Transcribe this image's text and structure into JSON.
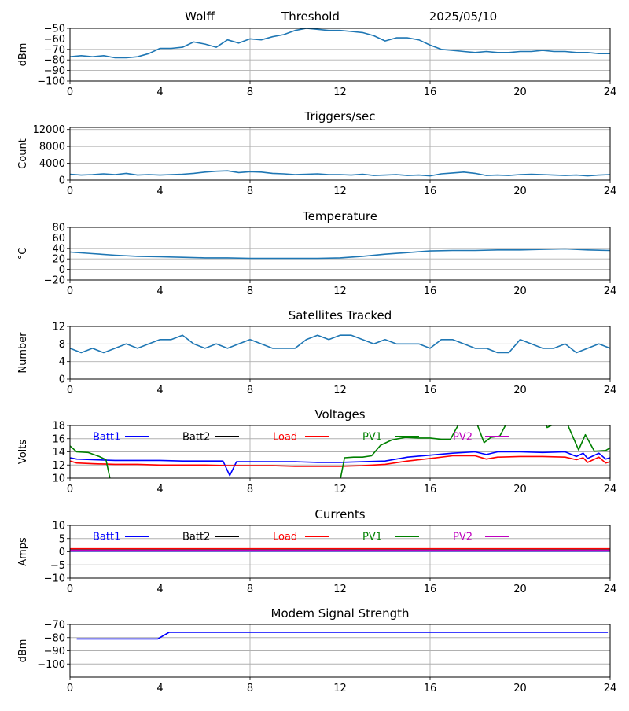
{
  "header": {
    "station": "Wolff",
    "mode": "Threshold",
    "date": "2025/05/10"
  },
  "colors": {
    "default": "#1f77b4",
    "batt1": "#0000ff",
    "batt2": "#000000",
    "load": "#ff0000",
    "pv1": "#008000",
    "pv2": "#bf00bf"
  },
  "chart_data": [
    {
      "id": "signal",
      "type": "line",
      "title": "",
      "ylabel": "dBm",
      "xlim": [
        0,
        24
      ],
      "ylim": [
        -100,
        -50
      ],
      "xticks": [
        0,
        4,
        8,
        12,
        16,
        20,
        24
      ],
      "yticks": [
        -100,
        -90,
        -80,
        -70,
        -60,
        -50
      ],
      "series": [
        {
          "color": "default",
          "x": [
            0,
            0.5,
            1,
            1.5,
            2,
            2.5,
            3,
            3.5,
            4,
            4.5,
            5,
            5.5,
            6,
            6.5,
            7,
            7.5,
            8,
            8.5,
            9,
            9.5,
            10,
            10.5,
            11,
            11.5,
            12,
            12.5,
            13,
            13.5,
            14,
            14.5,
            15,
            15.5,
            16,
            16.5,
            17,
            17.5,
            18,
            18.5,
            19,
            19.5,
            20,
            20.5,
            21,
            21.5,
            22,
            22.5,
            23,
            23.5,
            24
          ],
          "y": [
            -77,
            -76,
            -77,
            -76,
            -78,
            -78,
            -77,
            -74,
            -69,
            -69,
            -68,
            -63,
            -65,
            -68,
            -61,
            -64,
            -60,
            -61,
            -58,
            -56,
            -52,
            -50,
            -51,
            -52,
            -52,
            -53,
            -54,
            -57,
            -62,
            -59,
            -59,
            -61,
            -66,
            -70,
            -71,
            -72,
            -73,
            -72,
            -73,
            -73,
            -72,
            -72,
            -71,
            -72,
            -72,
            -73,
            -73,
            -74,
            -74
          ]
        }
      ]
    },
    {
      "id": "triggers",
      "type": "line",
      "title": "Triggers/sec",
      "ylabel": "Count",
      "xlim": [
        0,
        24
      ],
      "ylim": [
        0,
        12500
      ],
      "xticks": [
        0,
        4,
        8,
        12,
        16,
        20,
        24
      ],
      "yticks": [
        0,
        4000,
        8000,
        12000
      ],
      "series": [
        {
          "color": "default",
          "x": [
            0,
            0.5,
            1,
            1.5,
            2,
            2.5,
            3,
            3.5,
            4,
            4.5,
            5,
            5.5,
            6,
            6.5,
            7,
            7.5,
            8,
            8.5,
            9,
            9.5,
            10,
            10.5,
            11,
            11.5,
            12,
            12.5,
            13,
            13.5,
            14,
            14.5,
            15,
            15.5,
            16,
            16.5,
            17,
            17.5,
            18,
            18.5,
            19,
            19.5,
            20,
            20.5,
            21,
            21.5,
            22,
            22.5,
            23,
            23.5,
            24
          ],
          "y": [
            1400,
            1200,
            1300,
            1500,
            1300,
            1600,
            1200,
            1300,
            1200,
            1300,
            1400,
            1600,
            1900,
            2100,
            2200,
            1800,
            2000,
            1900,
            1600,
            1500,
            1300,
            1400,
            1500,
            1300,
            1300,
            1200,
            1400,
            1100,
            1200,
            1300,
            1100,
            1200,
            1000,
            1500,
            1700,
            1900,
            1600,
            1100,
            1200,
            1100,
            1300,
            1400,
            1300,
            1200,
            1100,
            1200,
            1000,
            1200,
            1300
          ]
        }
      ]
    },
    {
      "id": "temperature",
      "type": "line",
      "title": "Temperature",
      "ylabel": "°C",
      "xlim": [
        0,
        24
      ],
      "ylim": [
        -20,
        80
      ],
      "xticks": [
        0,
        4,
        8,
        12,
        16,
        20,
        24
      ],
      "yticks": [
        -20,
        0,
        20,
        40,
        60,
        80
      ],
      "series": [
        {
          "color": "default",
          "x": [
            0,
            1,
            2,
            3,
            4,
            5,
            6,
            7,
            8,
            9,
            10,
            11,
            12,
            13,
            14,
            15,
            16,
            17,
            18,
            19,
            20,
            21,
            22,
            23,
            24
          ],
          "y": [
            33,
            30,
            27,
            25,
            24,
            23,
            22,
            22,
            21,
            21,
            21,
            21,
            22,
            25,
            29,
            32,
            35,
            36,
            36,
            37,
            37,
            38,
            39,
            37,
            36
          ]
        }
      ]
    },
    {
      "id": "satellites",
      "type": "line",
      "title": "Satellites Tracked",
      "ylabel": "Number",
      "xlim": [
        0,
        24
      ],
      "ylim": [
        0,
        12
      ],
      "xticks": [
        0,
        4,
        8,
        12,
        16,
        20,
        24
      ],
      "yticks": [
        0,
        4,
        8,
        12
      ],
      "series": [
        {
          "color": "default",
          "x": [
            0,
            0.5,
            1,
            1.5,
            2,
            2.5,
            3,
            3.5,
            4,
            4.5,
            5,
            5.5,
            6,
            6.5,
            7,
            7.5,
            8,
            8.5,
            9,
            9.5,
            10,
            10.5,
            11,
            11.5,
            12,
            12.5,
            13,
            13.5,
            14,
            14.5,
            15,
            15.5,
            16,
            16.5,
            17,
            17.5,
            18,
            18.5,
            19,
            19.5,
            20,
            20.5,
            21,
            21.5,
            22,
            22.5,
            23,
            23.5,
            24
          ],
          "y": [
            7,
            6,
            7,
            6,
            7,
            8,
            7,
            8,
            9,
            9,
            10,
            8,
            7,
            8,
            7,
            8,
            9,
            8,
            7,
            7,
            7,
            9,
            10,
            9,
            10,
            10,
            9,
            8,
            9,
            8,
            8,
            8,
            7,
            9,
            9,
            8,
            7,
            7,
            6,
            6,
            9,
            8,
            7,
            7,
            8,
            6,
            7,
            8,
            7
          ]
        }
      ]
    },
    {
      "id": "voltages",
      "type": "line",
      "title": "Voltages",
      "ylabel": "Volts",
      "xlim": [
        0,
        24
      ],
      "ylim": [
        10,
        18
      ],
      "xticks": [
        0,
        4,
        8,
        12,
        16,
        20,
        24
      ],
      "yticks": [
        10,
        12,
        14,
        16,
        18
      ],
      "legend": [
        "Batt1",
        "Batt2",
        "Load",
        "PV1",
        "PV2"
      ],
      "series": [
        {
          "name": "Batt1",
          "color": "batt1",
          "x": [
            0,
            0.3,
            1,
            2,
            3,
            4,
            5,
            6,
            6.8,
            7.1,
            7.4,
            8,
            9,
            10,
            11,
            12,
            13,
            14,
            15,
            16,
            17,
            18,
            18.5,
            19,
            20,
            21,
            22,
            22.5,
            22.8,
            23,
            23.5,
            23.8,
            24
          ],
          "y": [
            13.1,
            12.9,
            12.8,
            12.7,
            12.7,
            12.7,
            12.6,
            12.6,
            12.6,
            10.4,
            12.5,
            12.5,
            12.5,
            12.5,
            12.4,
            12.4,
            12.5,
            12.6,
            13.2,
            13.5,
            13.8,
            14.0,
            13.6,
            14.0,
            14.0,
            13.9,
            14.0,
            13.3,
            13.8,
            13.0,
            13.8,
            12.9,
            13.1
          ]
        },
        {
          "name": "Load",
          "color": "load",
          "x": [
            0,
            0.3,
            1,
            2,
            3,
            4,
            5,
            6,
            7,
            8,
            9,
            10,
            11,
            12,
            13,
            14,
            15,
            16,
            17,
            18,
            18.5,
            19,
            20,
            21,
            22,
            22.5,
            22.8,
            23,
            23.5,
            23.8,
            24
          ],
          "y": [
            12.6,
            12.3,
            12.2,
            12.1,
            12.1,
            12.0,
            12.0,
            12.0,
            11.9,
            11.9,
            11.9,
            11.8,
            11.8,
            11.8,
            11.9,
            12.1,
            12.6,
            13.0,
            13.4,
            13.4,
            12.9,
            13.2,
            13.3,
            13.3,
            13.2,
            12.8,
            13.1,
            12.4,
            13.2,
            12.3,
            12.5
          ]
        },
        {
          "name": "PV1",
          "color": "pv1",
          "x": [
            0,
            0.3,
            0.8,
            1.3,
            1.6,
            1.8,
            12,
            12.2,
            12.6,
            13,
            13.4,
            13.8,
            14.3,
            14.9,
            15.5,
            16,
            16.5,
            16.9,
            17.4,
            18,
            18.4,
            18.7,
            19.1,
            19.5,
            20.2,
            21,
            21.2,
            22,
            22.6,
            22.9,
            23.3,
            23.8,
            24
          ],
          "y": [
            14.9,
            14.0,
            13.9,
            13.3,
            12.8,
            9.6,
            9.6,
            13.1,
            13.2,
            13.2,
            13.4,
            15.0,
            15.8,
            16.2,
            16.1,
            16.1,
            15.9,
            15.9,
            19.0,
            19.0,
            15.4,
            16.2,
            16.4,
            19.0,
            19.0,
            19.0,
            17.7,
            19.0,
            14.3,
            16.6,
            14.1,
            14.2,
            14.6
          ]
        }
      ]
    },
    {
      "id": "currents",
      "type": "line",
      "title": "Currents",
      "ylabel": "Amps",
      "xlim": [
        0,
        24
      ],
      "ylim": [
        -10,
        10
      ],
      "xticks": [
        0,
        4,
        8,
        12,
        16,
        20,
        24
      ],
      "yticks": [
        -10,
        -5,
        0,
        5,
        10
      ],
      "legend": [
        "Batt1",
        "Batt2",
        "Load",
        "PV1",
        "PV2"
      ],
      "series": [
        {
          "name": "Load",
          "color": "load",
          "x": [
            0,
            24
          ],
          "y": [
            1.0,
            1.0
          ]
        },
        {
          "name": "PV1",
          "color": "pv1",
          "x": [
            0,
            24
          ],
          "y": [
            0.6,
            0.6
          ]
        },
        {
          "name": "Batt1",
          "color": "batt1",
          "x": [
            0,
            24
          ],
          "y": [
            0.4,
            0.4
          ]
        },
        {
          "name": "PV2",
          "color": "pv2",
          "x": [
            0,
            24
          ],
          "y": [
            0.5,
            0.5
          ]
        }
      ]
    },
    {
      "id": "modem",
      "type": "line",
      "title": "Modem Signal Strength",
      "ylabel": "dBm",
      "xlim": [
        0,
        24
      ],
      "ylim": [
        -110,
        -70
      ],
      "xticks": [
        0,
        4,
        8,
        12,
        16,
        20,
        24
      ],
      "yticks": [
        -100,
        -90,
        -80,
        -70
      ],
      "series": [
        {
          "color": "batt1",
          "x": [
            0.3,
            3.9,
            4.4,
            23.9
          ],
          "y": [
            -81,
            -81,
            -76,
            -76
          ]
        }
      ]
    }
  ]
}
